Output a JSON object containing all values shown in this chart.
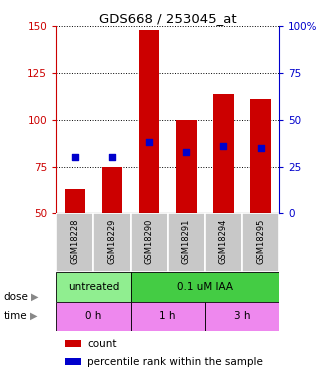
{
  "title": "GDS668 / 253045_at",
  "samples": [
    "GSM18228",
    "GSM18229",
    "GSM18290",
    "GSM18291",
    "GSM18294",
    "GSM18295"
  ],
  "bar_bottom": 50,
  "bar_tops": [
    63,
    75,
    148,
    100,
    114,
    111
  ],
  "blue_y": [
    80,
    80,
    88,
    83,
    86,
    85
  ],
  "ylim_left": [
    50,
    150
  ],
  "ylim_right": [
    0,
    100
  ],
  "yticks_left": [
    50,
    75,
    100,
    125,
    150
  ],
  "yticks_right": [
    0,
    25,
    50,
    75,
    100
  ],
  "ytick_labels_left": [
    "50",
    "75",
    "100",
    "125",
    "150"
  ],
  "ytick_labels_right": [
    "0",
    "25",
    "50",
    "75",
    "100%"
  ],
  "bar_color": "#cc0000",
  "blue_color": "#0000cc",
  "dose_labels": [
    "untreated",
    "0.1 uM IAA"
  ],
  "time_labels": [
    "0 h",
    "1 h",
    "3 h"
  ],
  "dose_color_untreated": "#90EE90",
  "dose_color_treated": "#44CC44",
  "time_color": "#EE88EE",
  "sample_box_color": "#C8C8C8",
  "left_axis_color": "#cc0000",
  "right_axis_color": "#0000cc",
  "background_color": "#ffffff"
}
